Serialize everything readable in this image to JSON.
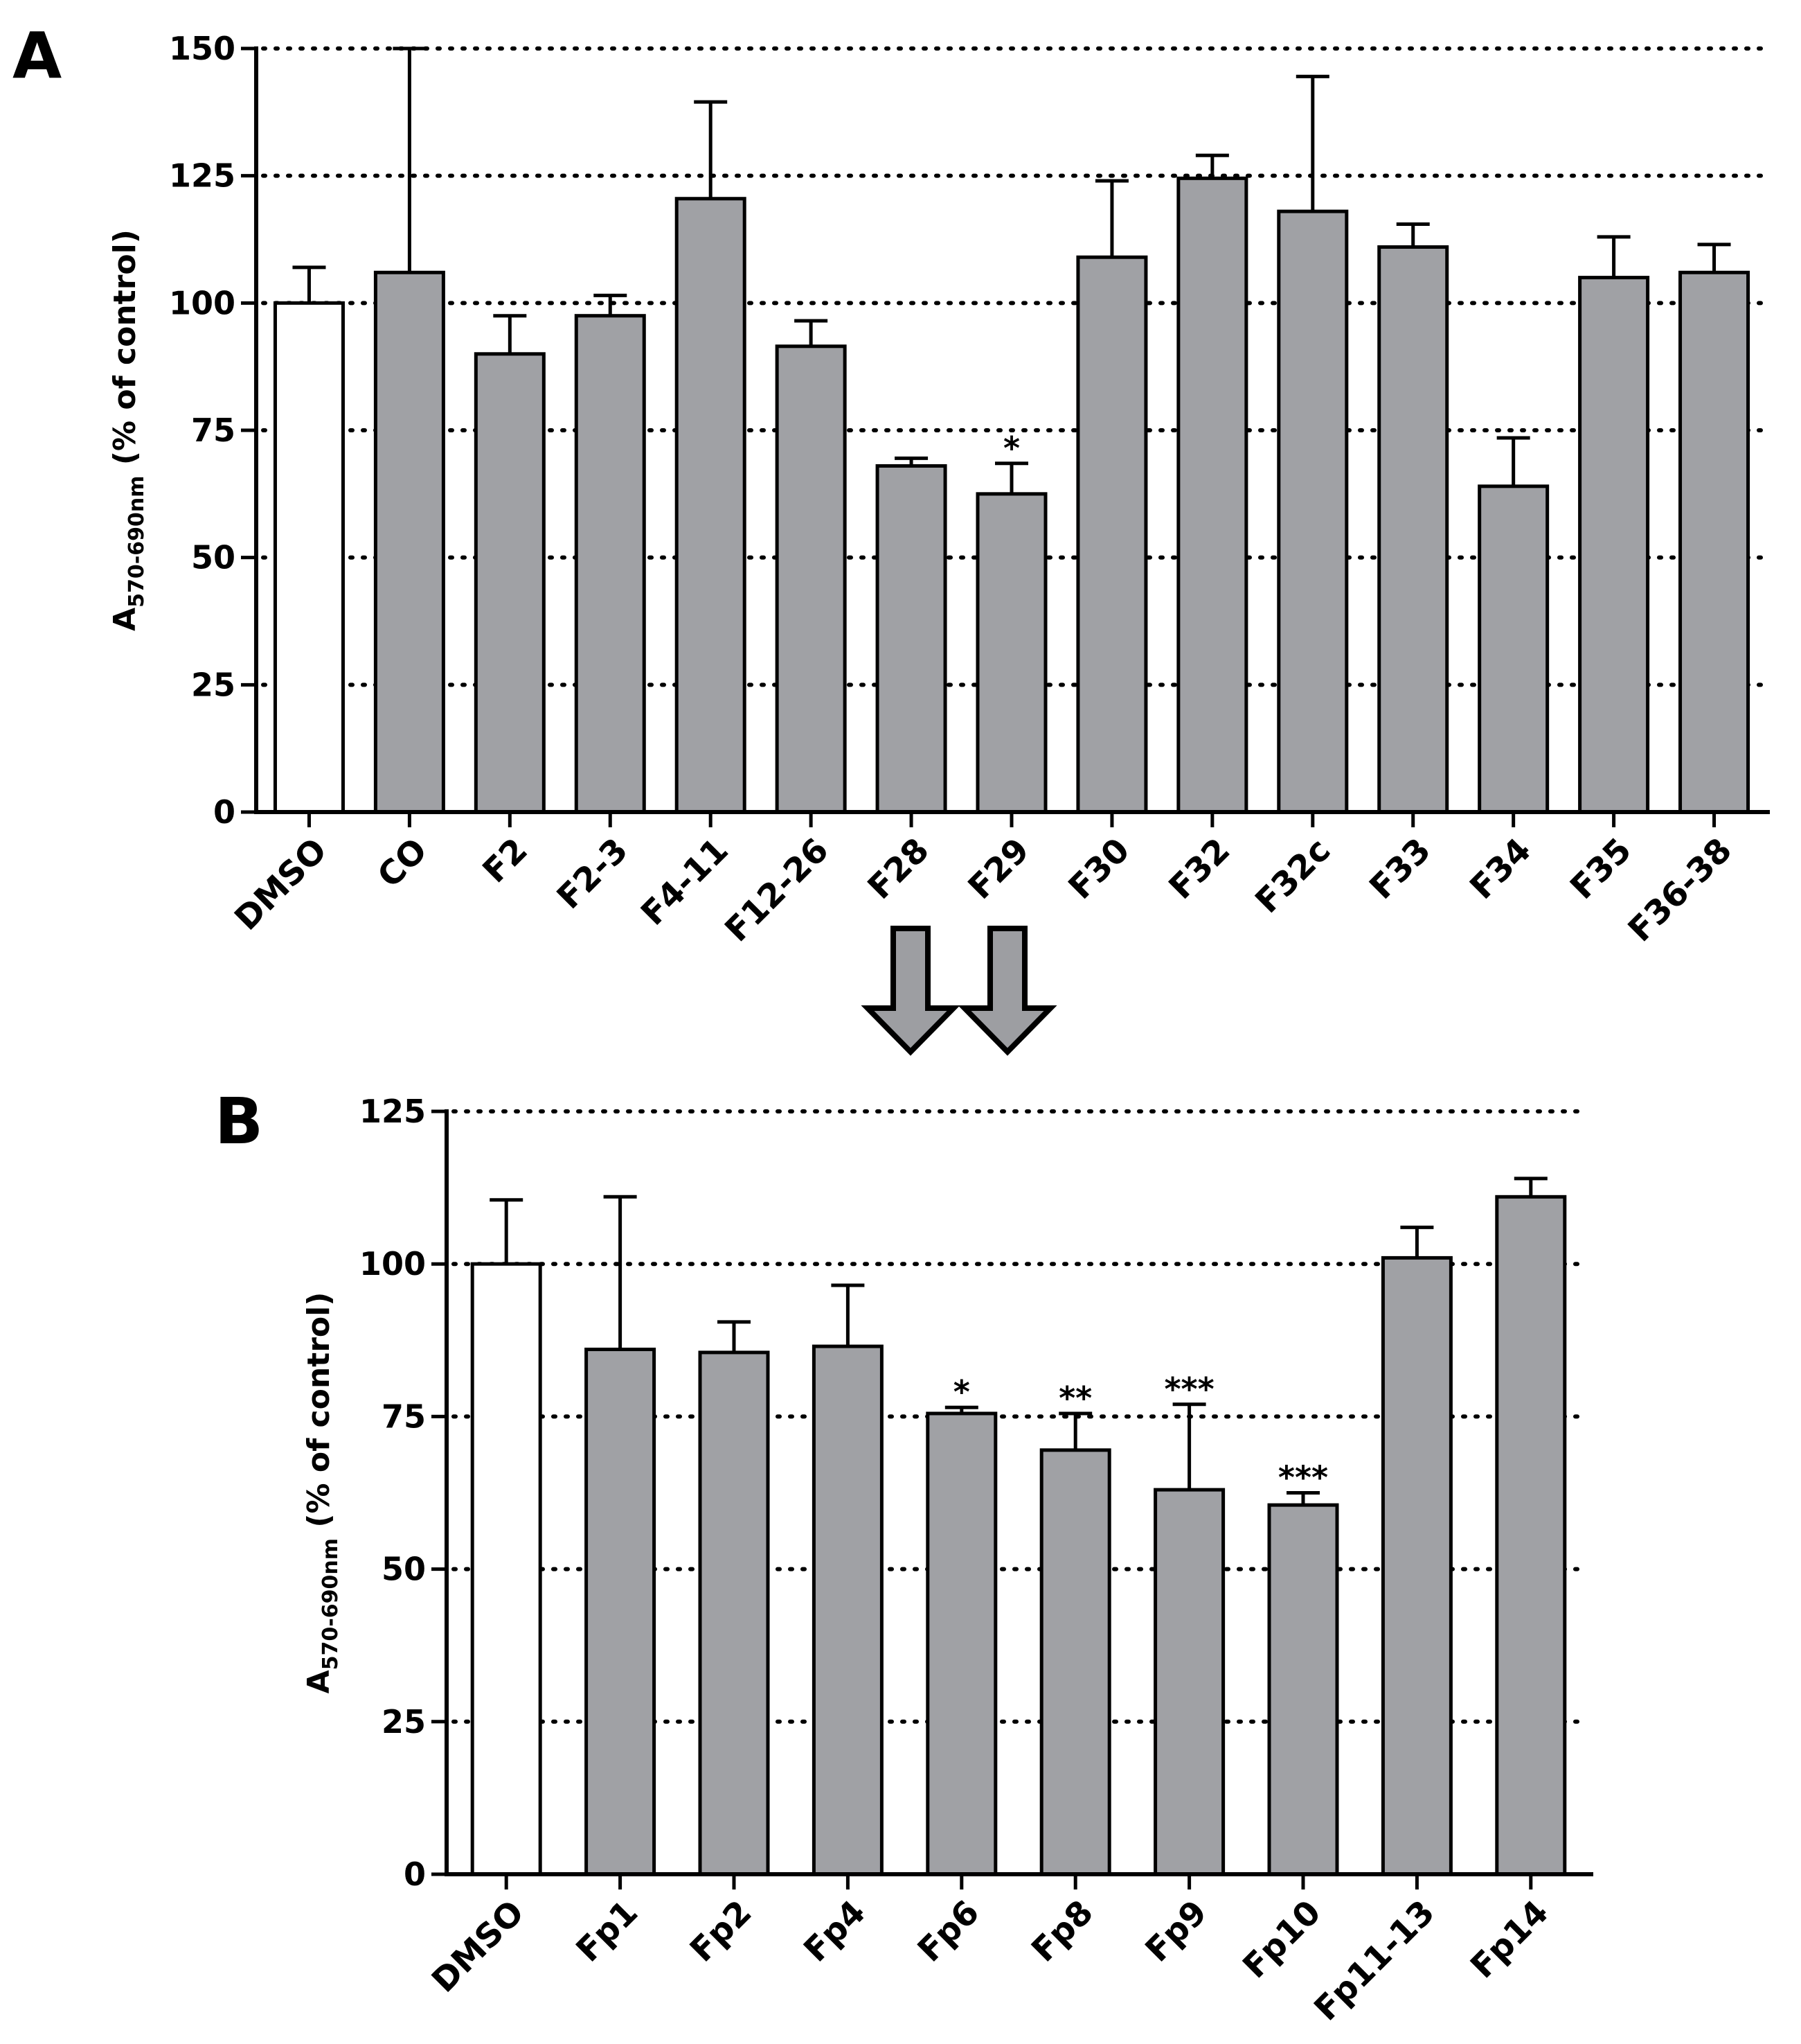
{
  "colors": {
    "bar_fill": "#a0a1a5",
    "control_fill": "#ffffff",
    "stroke": "#000000",
    "grid": "#000000",
    "arrow_fill": "#9d9ea2"
  },
  "arrow_icon": "down-arrow-icon",
  "chart_data": [
    {
      "panel": "A",
      "type": "bar",
      "ylabel_main": "A",
      "ylabel_sub": "570-690nm",
      "ylabel_rest": " (% of control)",
      "ylim": [
        0,
        150
      ],
      "yticks": [
        0,
        25,
        50,
        75,
        100,
        125,
        150
      ],
      "ytick_labels": [
        "0",
        "25",
        "50",
        "75",
        "100",
        "125",
        "150"
      ],
      "grid": "dotted horizontal at ticks",
      "categories": [
        "DMSO",
        "CO",
        "F2",
        "F2-3",
        "F4-11",
        "F12-26",
        "F28",
        "F29",
        "F30",
        "F32",
        "F32c",
        "F33",
        "F34",
        "F35",
        "F36-38"
      ],
      "values": [
        100,
        106,
        90,
        97.5,
        120.5,
        91.5,
        68,
        62.5,
        109,
        124.5,
        118,
        111,
        64,
        105,
        106
      ],
      "errors": [
        7,
        44,
        7.5,
        4,
        19,
        5,
        1.5,
        6,
        15,
        4.5,
        26.5,
        4.5,
        9.5,
        8,
        5.5
      ],
      "control_index": 0,
      "significance": [
        {
          "index": 7,
          "label": "*"
        }
      ]
    },
    {
      "panel": "B",
      "type": "bar",
      "ylabel_main": "A",
      "ylabel_sub": "570-690nm",
      "ylabel_rest": " (% of control)",
      "ylim": [
        0,
        125
      ],
      "yticks": [
        0,
        25,
        50,
        75,
        100,
        125
      ],
      "ytick_labels": [
        "0",
        "25",
        "50",
        "75",
        "100",
        "125"
      ],
      "grid": "dotted horizontal at ticks",
      "categories": [
        "DMSO",
        "Fp1",
        "Fp2",
        "Fp4",
        "Fp6",
        "Fp8",
        "Fp9",
        "Fp10",
        "Fp11-13",
        "Fp14"
      ],
      "values": [
        100,
        86,
        85.5,
        86.5,
        75.5,
        69.5,
        63,
        60.5,
        101,
        111
      ],
      "errors": [
        10.5,
        25,
        5,
        10,
        1,
        6,
        14,
        2,
        5,
        3
      ],
      "control_index": 0,
      "significance": [
        {
          "index": 4,
          "label": "*"
        },
        {
          "index": 5,
          "label": "**"
        },
        {
          "index": 6,
          "label": "***"
        },
        {
          "index": 7,
          "label": "***"
        }
      ]
    }
  ]
}
